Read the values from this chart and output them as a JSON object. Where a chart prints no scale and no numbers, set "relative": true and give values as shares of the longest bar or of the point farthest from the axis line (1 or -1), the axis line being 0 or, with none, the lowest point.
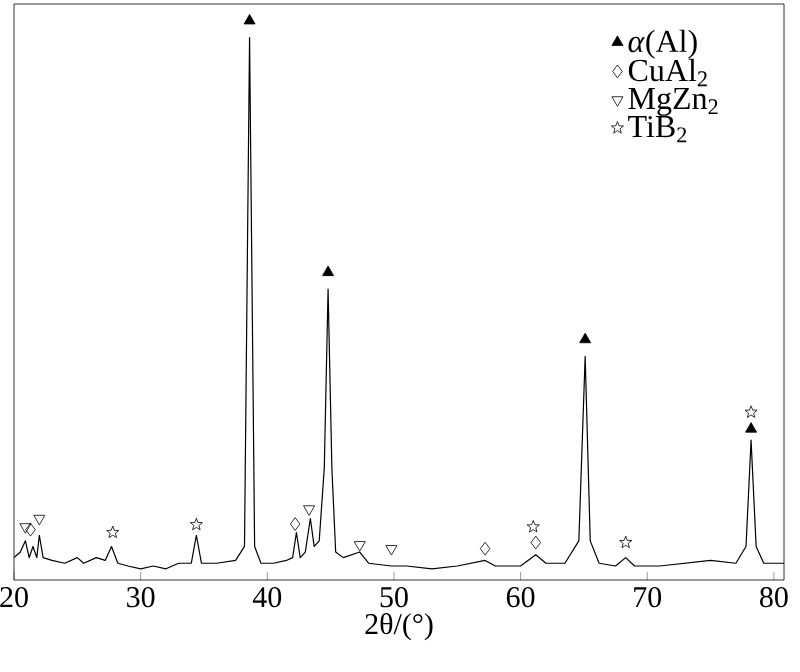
{
  "chart_data": {
    "type": "line",
    "relative": true,
    "xlabel": "2θ/(°)",
    "xlim": [
      20,
      80.8
    ],
    "xticks": [
      20,
      30,
      40,
      50,
      60,
      70,
      80
    ],
    "legend": "top right",
    "series": [
      {
        "color": "#000000",
        "x": [
          20,
          20.5,
          20.9,
          21.2,
          21.5,
          21.8,
          22.0,
          22.3,
          23,
          24,
          25,
          25.5,
          26.5,
          27.2,
          27.7,
          28.2,
          29,
          30,
          31,
          32,
          33,
          34,
          34.4,
          34.8,
          36,
          37.5,
          38.2,
          38.6,
          39.0,
          39.5,
          40.5,
          41.5,
          42.0,
          42.3,
          42.6,
          43.0,
          43.4,
          43.7,
          44.1,
          44.5,
          44.8,
          45.1,
          45.4,
          46,
          47.3,
          48,
          49.8,
          51,
          53,
          55,
          57.2,
          58,
          60,
          61.2,
          62,
          63.5,
          64.6,
          65.1,
          65.5,
          66.2,
          67.5,
          68.3,
          69,
          71,
          73,
          75,
          77,
          77.8,
          78.2,
          78.6,
          79.2,
          80,
          80.8
        ],
        "values": [
          0.04,
          0.05,
          0.07,
          0.04,
          0.06,
          0.04,
          0.08,
          0.04,
          0.035,
          0.03,
          0.04,
          0.03,
          0.04,
          0.035,
          0.06,
          0.03,
          0.025,
          0.02,
          0.025,
          0.02,
          0.03,
          0.03,
          0.08,
          0.03,
          0.03,
          0.035,
          0.06,
          0.97,
          0.06,
          0.03,
          0.03,
          0.035,
          0.04,
          0.085,
          0.04,
          0.05,
          0.11,
          0.06,
          0.07,
          0.2,
          0.52,
          0.2,
          0.05,
          0.04,
          0.05,
          0.03,
          0.025,
          0.025,
          0.02,
          0.025,
          0.035,
          0.025,
          0.025,
          0.045,
          0.03,
          0.03,
          0.07,
          0.4,
          0.07,
          0.03,
          0.025,
          0.04,
          0.025,
          0.025,
          0.03,
          0.035,
          0.03,
          0.06,
          0.25,
          0.06,
          0.03,
          0.03,
          0.03
        ]
      },
      {
        "type": "scatter",
        "name": "*α*(Al)",
        "marker": "triangle",
        "color": "#000000",
        "x": [
          38.6,
          44.8,
          65.1,
          78.2
        ],
        "values": [
          1.0,
          0.55,
          0.43,
          0.27
        ]
      },
      {
        "type": "scatter",
        "name": "CuAl$_{2}$",
        "marker": "diamond",
        "color": "#000000",
        "x": [
          21.3,
          42.2,
          57.2,
          61.2
        ],
        "values": [
          0.09,
          0.1,
          0.056,
          0.067
        ]
      },
      {
        "type": "scatter",
        "name": "MgZn$_{2}$",
        "marker": "triangle-down",
        "color": "#000000",
        "x": [
          20.9,
          22.0,
          43.3,
          47.3,
          49.8
        ],
        "values": [
          0.095,
          0.11,
          0.127,
          0.063,
          0.056
        ]
      },
      {
        "type": "scatter",
        "name": "TiB$_{2}$",
        "marker": "star",
        "color": "#000000",
        "x": [
          27.8,
          34.4,
          61.0,
          68.3,
          78.2
        ],
        "values": [
          0.085,
          0.099,
          0.095,
          0.067,
          0.3
        ]
      }
    ]
  }
}
